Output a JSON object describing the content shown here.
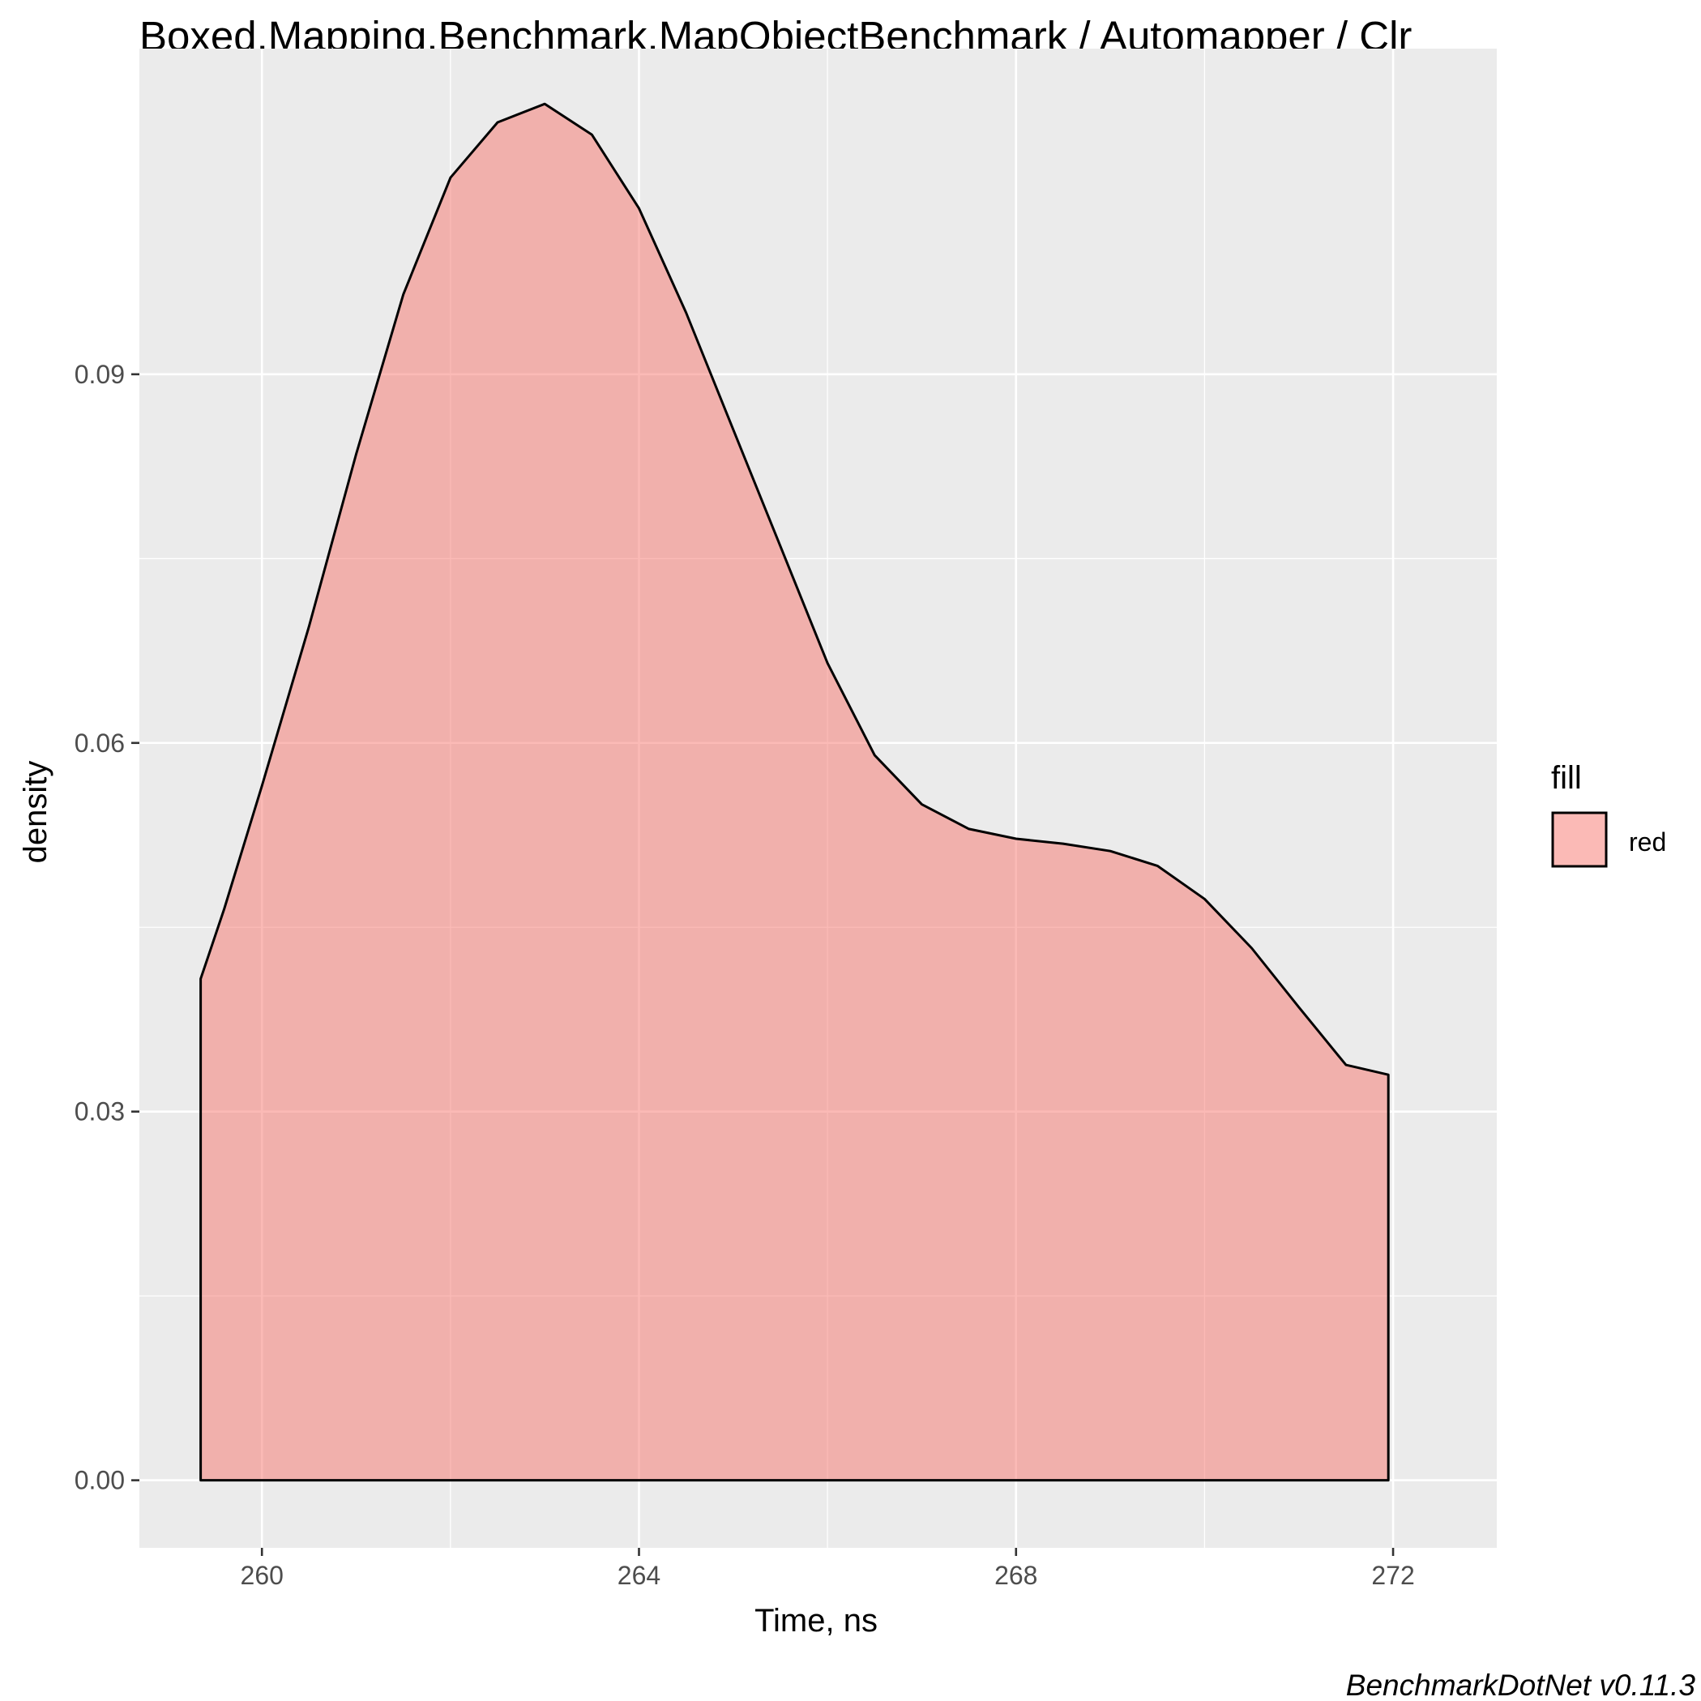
{
  "chart_data": {
    "type": "area",
    "title": "Boxed.Mapping.Benchmark.MapObjectBenchmark / Automapper / Clr",
    "xlabel": "Time, ns",
    "ylabel": "density",
    "xlim": [
      258.7,
      273.1
    ],
    "ylim": [
      -0.0055,
      0.1165
    ],
    "x_ticks": [
      260,
      264,
      268,
      272
    ],
    "x_tick_labels": [
      "260",
      "264",
      "268",
      "272"
    ],
    "y_ticks": [
      0.0,
      0.03,
      0.06,
      0.09
    ],
    "y_tick_labels": [
      "0.00",
      "0.03",
      "0.06",
      "0.09"
    ],
    "grid": true,
    "legend": {
      "title": "fill",
      "position": "right",
      "entries": [
        {
          "label": "red",
          "color": "#F8766D"
        }
      ]
    },
    "fill_color": "#F8766D",
    "fill_opacity": 0.5,
    "line_color": "#000000",
    "panel_background": "#EBEBEB",
    "series": [
      {
        "x": [
          259.35,
          259.6,
          260.0,
          260.5,
          261.0,
          261.5,
          262.0,
          262.5,
          263.0,
          263.5,
          264.0,
          264.5,
          265.0,
          265.5,
          266.0,
          266.5,
          267.0,
          267.5,
          268.0,
          268.5,
          269.0,
          269.5,
          270.0,
          270.5,
          271.0,
          271.5,
          271.95
        ],
        "y": [
          0.0408,
          0.0465,
          0.0565,
          0.0695,
          0.0835,
          0.0965,
          0.106,
          0.1105,
          0.112,
          0.1095,
          0.1035,
          0.095,
          0.0855,
          0.076,
          0.0665,
          0.059,
          0.055,
          0.053,
          0.0522,
          0.0518,
          0.0512,
          0.05,
          0.0473,
          0.0433,
          0.0385,
          0.0338,
          0.033
        ]
      }
    ]
  },
  "caption": "BenchmarkDotNet v0.11.3"
}
